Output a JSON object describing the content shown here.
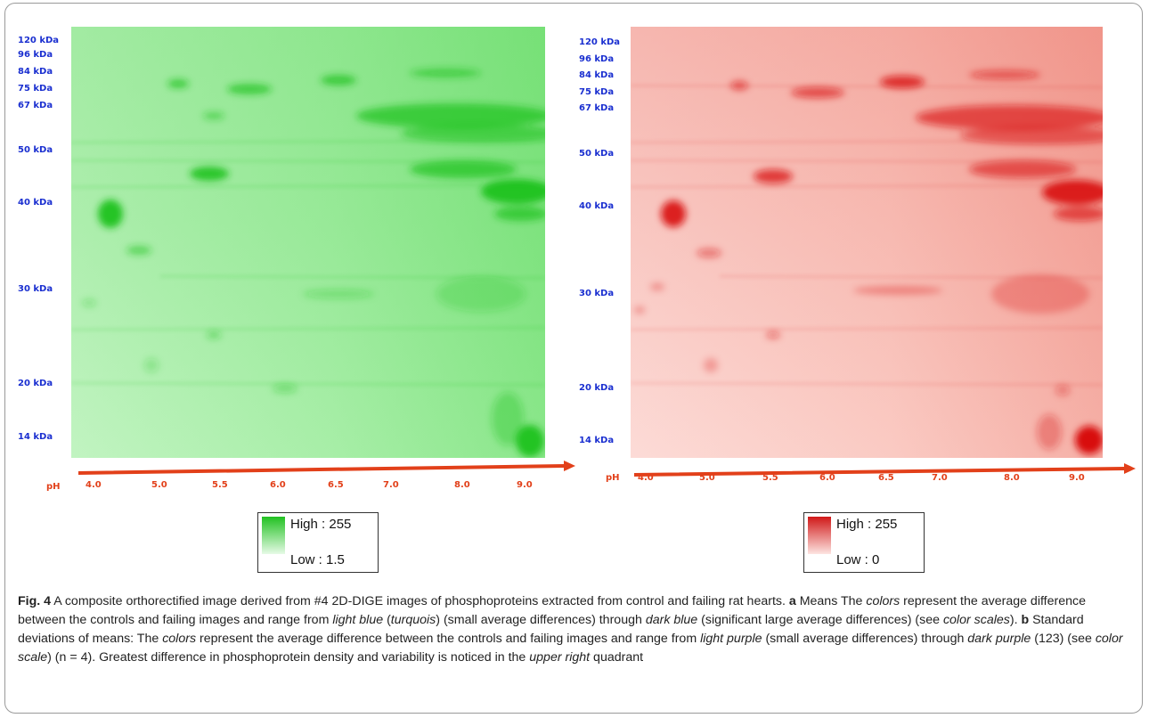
{
  "panel_a": {
    "mw_labels": [
      "120 kDa",
      "96 kDa",
      "84 kDa",
      "75 kDa",
      "67 kDa",
      "50 kDa",
      "40 kDa",
      "30 kDa",
      "20 kDa",
      "14 kDa"
    ],
    "ph_label": "pH",
    "ph_ticks": [
      "4.0",
      "5.0",
      "5.5",
      "6.0",
      "6.5",
      "7.0",
      "8.0",
      "9.0"
    ],
    "legend_high": "High : 255",
    "legend_low": "Low : 1.5",
    "color": "#1fc21f"
  },
  "panel_b": {
    "mw_labels": [
      "120 kDa",
      "96 kDa",
      "84 kDa",
      "75 kDa",
      "67 kDa",
      "50 kDa",
      "40 kDa",
      "30 kDa",
      "20 kDa",
      "14 kDa"
    ],
    "ph_label": "pH",
    "ph_ticks": [
      "4.0",
      "5.0",
      "5.5",
      "6.0",
      "6.5",
      "7.0",
      "8.0",
      "9.0"
    ],
    "legend_high": "High : 255",
    "legend_low": "Low : 0",
    "color": "#d81010"
  },
  "axis_color": "#e2401a",
  "mw_color": "#1a2fd0",
  "caption": {
    "fig_label": "Fig. 4",
    "s1": "  A composite orthorectified image derived from #4 2D-DIGE images of phosphoproteins extracted from control and failing rat hearts. ",
    "a": "a",
    "s2": " Means The ",
    "i1": "colors",
    "s3": " represent the average difference between the controls and failing images and range from ",
    "i2": "light blue",
    "s4": " (",
    "i3": "turquois",
    "s5": ") (small average differences) through ",
    "i4": "dark blue",
    "s6": " (significant large average differences) (see ",
    "i5": "color scales",
    "s7": "). ",
    "b": "b",
    "s8": " Standard deviations of means: The ",
    "i6": "colors",
    "s9": " represent the average difference between the controls and failing images and range from ",
    "i7": "light purple",
    "s10": " (small average differences) through ",
    "i8": "dark purple",
    "s11": " (123) (see ",
    "i9": "color scale",
    "s12": ") (n = 4). Greatest difference in phosphoprotein density and variability is noticed in the ",
    "i10": "upper right",
    "s13": " quadrant"
  }
}
